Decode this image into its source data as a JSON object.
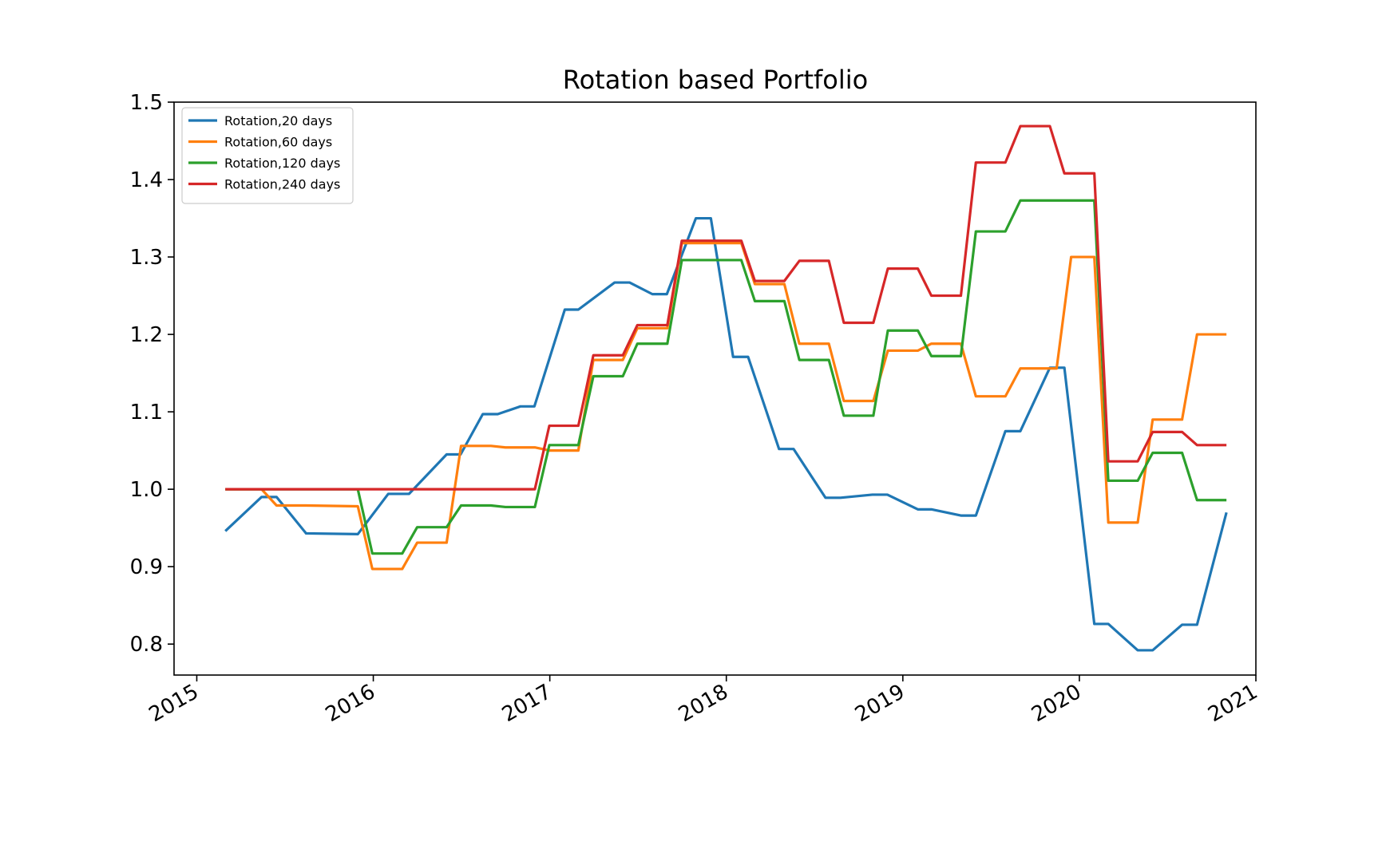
{
  "chart_data": {
    "type": "line",
    "title": "Rotation based Portfolio",
    "xlabel": "",
    "ylabel": "",
    "xlim": [
      "2014-11-15",
      "2021-01-01"
    ],
    "ylim": [
      0.76,
      1.5
    ],
    "x_ticks": [
      "2015",
      "2016",
      "2017",
      "2018",
      "2019",
      "2020",
      "2021"
    ],
    "y_ticks": [
      "0.8",
      "0.9",
      "1.0",
      "1.1",
      "1.2",
      "1.3",
      "1.4",
      "1.5"
    ],
    "grid": false,
    "legend_position": "top-left",
    "series": [
      {
        "name": "Rotation,20 days",
        "color": "#1f77b4",
        "points": [
          [
            "2015-03-01",
            0.946
          ],
          [
            "2015-05-15",
            0.99
          ],
          [
            "2015-06-15",
            0.99
          ],
          [
            "2015-08-15",
            0.943
          ],
          [
            "2015-11-30",
            0.942
          ],
          [
            "2016-02-01",
            0.994
          ],
          [
            "2016-03-15",
            0.994
          ],
          [
            "2016-06-01",
            1.045
          ],
          [
            "2016-06-30",
            1.045
          ],
          [
            "2016-08-15",
            1.097
          ],
          [
            "2016-09-15",
            1.097
          ],
          [
            "2016-11-01",
            1.107
          ],
          [
            "2016-11-30",
            1.107
          ],
          [
            "2017-02-01",
            1.232
          ],
          [
            "2017-03-01",
            1.232
          ],
          [
            "2017-05-15",
            1.267
          ],
          [
            "2017-06-15",
            1.267
          ],
          [
            "2017-08-01",
            1.252
          ],
          [
            "2017-08-31",
            1.252
          ],
          [
            "2017-10-30",
            1.35
          ],
          [
            "2017-11-30",
            1.35
          ],
          [
            "2018-01-15",
            1.171
          ],
          [
            "2018-02-15",
            1.171
          ],
          [
            "2018-04-20",
            1.052
          ],
          [
            "2018-05-20",
            1.052
          ],
          [
            "2018-07-25",
            0.989
          ],
          [
            "2018-08-25",
            0.989
          ],
          [
            "2018-10-30",
            0.993
          ],
          [
            "2018-11-30",
            0.993
          ],
          [
            "2019-02-01",
            0.974
          ],
          [
            "2019-03-01",
            0.974
          ],
          [
            "2019-05-01",
            0.966
          ],
          [
            "2019-06-01",
            0.966
          ],
          [
            "2019-08-01",
            1.075
          ],
          [
            "2019-09-01",
            1.075
          ],
          [
            "2019-11-01",
            1.157
          ],
          [
            "2019-12-01",
            1.157
          ],
          [
            "2020-02-01",
            0.826
          ],
          [
            "2020-03-01",
            0.826
          ],
          [
            "2020-05-01",
            0.792
          ],
          [
            "2020-06-01",
            0.792
          ],
          [
            "2020-08-01",
            0.825
          ],
          [
            "2020-09-01",
            0.825
          ],
          [
            "2020-11-01",
            0.97
          ]
        ]
      },
      {
        "name": "Rotation,60 days",
        "color": "#ff7f0e",
        "points": [
          [
            "2015-03-01",
            1.0
          ],
          [
            "2015-05-15",
            1.0
          ],
          [
            "2015-06-15",
            0.979
          ],
          [
            "2015-08-15",
            0.979
          ],
          [
            "2015-11-30",
            0.978
          ],
          [
            "2015-12-30",
            0.897
          ],
          [
            "2016-03-01",
            0.897
          ],
          [
            "2016-04-01",
            0.931
          ],
          [
            "2016-06-01",
            0.931
          ],
          [
            "2016-07-01",
            1.056
          ],
          [
            "2016-09-01",
            1.056
          ],
          [
            "2016-10-01",
            1.054
          ],
          [
            "2016-12-01",
            1.054
          ],
          [
            "2016-12-31",
            1.05
          ],
          [
            "2017-03-01",
            1.05
          ],
          [
            "2017-04-01",
            1.167
          ],
          [
            "2017-06-01",
            1.167
          ],
          [
            "2017-07-01",
            1.208
          ],
          [
            "2017-09-01",
            1.208
          ],
          [
            "2017-10-01",
            1.318
          ],
          [
            "2018-02-01",
            1.318
          ],
          [
            "2018-03-01",
            1.265
          ],
          [
            "2018-05-01",
            1.265
          ],
          [
            "2018-06-01",
            1.188
          ],
          [
            "2018-08-01",
            1.188
          ],
          [
            "2018-09-01",
            1.114
          ],
          [
            "2018-11-01",
            1.114
          ],
          [
            "2018-12-01",
            1.179
          ],
          [
            "2019-02-01",
            1.179
          ],
          [
            "2019-03-01",
            1.188
          ],
          [
            "2019-05-01",
            1.188
          ],
          [
            "2019-06-01",
            1.12
          ],
          [
            "2019-08-01",
            1.12
          ],
          [
            "2019-09-01",
            1.156
          ],
          [
            "2019-11-15",
            1.156
          ],
          [
            "2019-12-15",
            1.3
          ],
          [
            "2020-02-01",
            1.3
          ],
          [
            "2020-03-01",
            0.957
          ],
          [
            "2020-05-01",
            0.957
          ],
          [
            "2020-06-01",
            1.09
          ],
          [
            "2020-08-01",
            1.09
          ],
          [
            "2020-09-01",
            1.2
          ],
          [
            "2020-11-01",
            1.2
          ]
        ]
      },
      {
        "name": "Rotation,120 days",
        "color": "#2ca02c",
        "points": [
          [
            "2015-03-01",
            1.0
          ],
          [
            "2015-11-30",
            1.0
          ],
          [
            "2015-12-30",
            0.917
          ],
          [
            "2016-03-01",
            0.917
          ],
          [
            "2016-04-01",
            0.951
          ],
          [
            "2016-06-01",
            0.951
          ],
          [
            "2016-07-01",
            0.979
          ],
          [
            "2016-09-01",
            0.979
          ],
          [
            "2016-10-01",
            0.977
          ],
          [
            "2016-12-01",
            0.977
          ],
          [
            "2016-12-31",
            1.057
          ],
          [
            "2017-03-01",
            1.057
          ],
          [
            "2017-04-01",
            1.146
          ],
          [
            "2017-06-01",
            1.146
          ],
          [
            "2017-07-01",
            1.188
          ],
          [
            "2017-09-01",
            1.188
          ],
          [
            "2017-10-01",
            1.296
          ],
          [
            "2018-02-01",
            1.296
          ],
          [
            "2018-03-01",
            1.243
          ],
          [
            "2018-05-01",
            1.243
          ],
          [
            "2018-06-01",
            1.167
          ],
          [
            "2018-08-01",
            1.167
          ],
          [
            "2018-09-01",
            1.095
          ],
          [
            "2018-11-01",
            1.095
          ],
          [
            "2018-12-01",
            1.205
          ],
          [
            "2019-02-01",
            1.205
          ],
          [
            "2019-03-01",
            1.172
          ],
          [
            "2019-05-01",
            1.172
          ],
          [
            "2019-06-01",
            1.333
          ],
          [
            "2019-08-01",
            1.333
          ],
          [
            "2019-09-01",
            1.373
          ],
          [
            "2020-02-01",
            1.373
          ],
          [
            "2020-03-01",
            1.011
          ],
          [
            "2020-05-01",
            1.011
          ],
          [
            "2020-06-01",
            1.047
          ],
          [
            "2020-08-01",
            1.047
          ],
          [
            "2020-09-01",
            0.986
          ],
          [
            "2020-11-01",
            0.986
          ]
        ]
      },
      {
        "name": "Rotation,240 days",
        "color": "#d62728",
        "points": [
          [
            "2015-03-01",
            1.0
          ],
          [
            "2016-12-01",
            1.0
          ],
          [
            "2016-12-31",
            1.082
          ],
          [
            "2017-03-01",
            1.082
          ],
          [
            "2017-04-01",
            1.173
          ],
          [
            "2017-06-01",
            1.173
          ],
          [
            "2017-07-01",
            1.212
          ],
          [
            "2017-09-01",
            1.212
          ],
          [
            "2017-10-01",
            1.321
          ],
          [
            "2018-02-01",
            1.321
          ],
          [
            "2018-03-01",
            1.269
          ],
          [
            "2018-05-01",
            1.269
          ],
          [
            "2018-06-01",
            1.295
          ],
          [
            "2018-08-01",
            1.295
          ],
          [
            "2018-09-01",
            1.215
          ],
          [
            "2018-11-01",
            1.215
          ],
          [
            "2018-12-01",
            1.285
          ],
          [
            "2019-02-01",
            1.285
          ],
          [
            "2019-03-01",
            1.25
          ],
          [
            "2019-05-01",
            1.25
          ],
          [
            "2019-06-01",
            1.422
          ],
          [
            "2019-08-01",
            1.422
          ],
          [
            "2019-09-01",
            1.469
          ],
          [
            "2019-11-01",
            1.469
          ],
          [
            "2019-12-01",
            1.408
          ],
          [
            "2020-02-01",
            1.408
          ],
          [
            "2020-03-01",
            1.036
          ],
          [
            "2020-05-01",
            1.036
          ],
          [
            "2020-06-01",
            1.074
          ],
          [
            "2020-08-01",
            1.074
          ],
          [
            "2020-09-01",
            1.057
          ],
          [
            "2020-11-01",
            1.057
          ]
        ]
      }
    ]
  }
}
